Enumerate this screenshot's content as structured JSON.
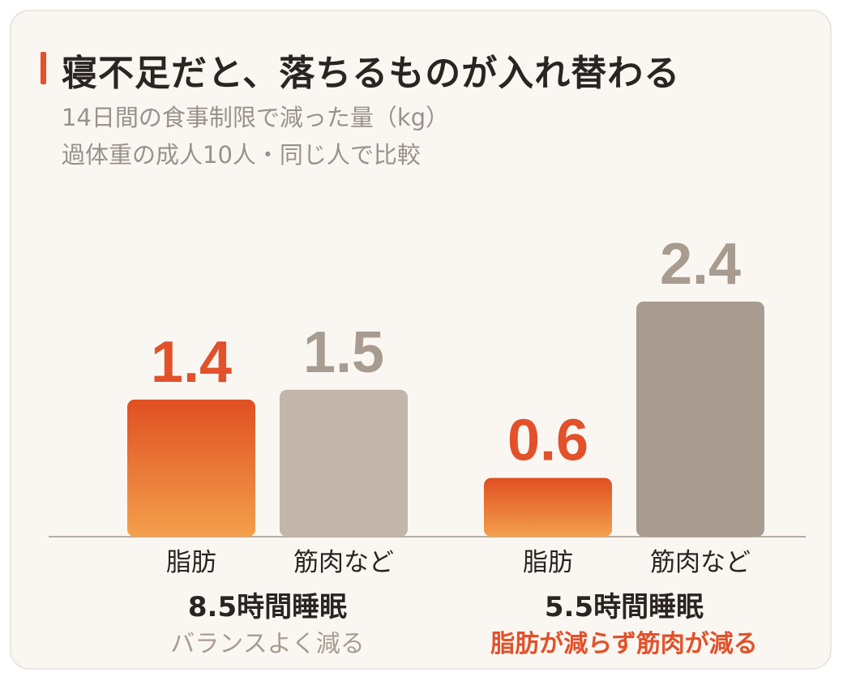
{
  "header": {
    "title": "寝不足だと、落ちるものが入れ替わる",
    "subtitle_1": "14日間の食事制限で減った量（kg）",
    "subtitle_2": "過体重の成人10人・同じ人で比較"
  },
  "colors": {
    "accent": "#e2512a",
    "fat_gradient_top": "#e04f22",
    "fat_gradient_bottom": "#f3a04c",
    "muscle_light": "#c2b6ab",
    "muscle_dark": "#a89b8f",
    "value_gray": "#a89b8f",
    "axis": "#b8aca2"
  },
  "chart_data": {
    "type": "bar",
    "categories": [
      "脂肪",
      "筋肉など"
    ],
    "unit": "kg",
    "ylim": [
      0,
      2.7
    ],
    "groups": [
      {
        "label": "8.5時間睡眠",
        "note": "バランスよく減る",
        "note_highlight": false,
        "values": [
          1.4,
          1.5
        ],
        "value_labels": [
          "1.4",
          "1.5"
        ]
      },
      {
        "label": "5.5時間睡眠",
        "note": "脂肪が減らず筋肉が減る",
        "note_highlight": true,
        "values": [
          0.6,
          2.4
        ],
        "value_labels": [
          "0.6",
          "2.4"
        ]
      }
    ]
  }
}
